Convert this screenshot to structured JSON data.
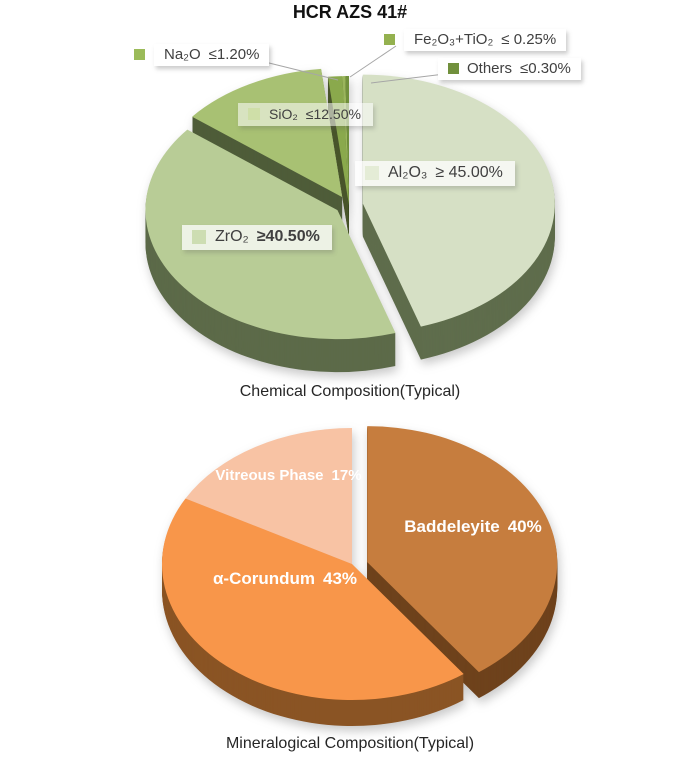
{
  "title": "HCR AZS 41#",
  "chart_data": [
    {
      "type": "pie",
      "variant": "3d-exploded",
      "caption": "Chemical Composition(Typical)",
      "unit": "%",
      "legend_position": "callouts",
      "slices": [
        {
          "name": "Al₂O₃",
          "constraint": "≥ 45.00%",
          "value": 45.0,
          "color": "#d6e0c5",
          "side_color": "#5f6d4c",
          "marker_color": "#e4ecd6",
          "exploded": true
        },
        {
          "name": "ZrO₂",
          "constraint": "≥40.50%",
          "value": 40.5,
          "color": "#b8cc96",
          "side_color": "#5c6a49",
          "marker_color": "#cdddb2",
          "exploded": true
        },
        {
          "name": "SiO₂",
          "constraint": "≤12.50%",
          "value": 12.5,
          "color": "#a8c173",
          "side_color": "#4e5c39",
          "marker_color": "#cfdfa8",
          "exploded": true
        },
        {
          "name": "Na₂O",
          "constraint": "≤1.20%",
          "value": 1.2,
          "color": "#8aa94c",
          "side_color": "#49562b",
          "marker_color": "#9bbb59",
          "exploded": false
        },
        {
          "name": "Fe₂O₃+TiO₂",
          "constraint": "≤ 0.25%",
          "value": 0.25,
          "color": "#9ab55c",
          "side_color": "#4c5a2e",
          "marker_color": "#94b14f",
          "exploded": false
        },
        {
          "name": "Others",
          "constraint": "≤0.30%",
          "value": 0.3,
          "color": "#71903c",
          "side_color": "#3e4d22",
          "marker_color": "#71903c",
          "exploded": false
        }
      ]
    },
    {
      "type": "pie",
      "variant": "3d-exploded",
      "caption": "Mineralogical Composition(Typical)",
      "unit": "%",
      "legend_position": "inside",
      "slices": [
        {
          "name": "Baddeleyite",
          "pct_label": "40%",
          "value": 40,
          "color": "#c67d3e",
          "side_color": "#6e421c",
          "exploded": true
        },
        {
          "name": "α-Corundum",
          "pct_label": "43%",
          "value": 43,
          "color": "#f8964a",
          "side_color": "#8a5424",
          "exploded": false
        },
        {
          "name": "Vitreous Phase",
          "pct_label": "17%",
          "value": 17,
          "color": "#f8c3a4",
          "side_color": "#e0a67e",
          "exploded": false
        }
      ]
    }
  ]
}
